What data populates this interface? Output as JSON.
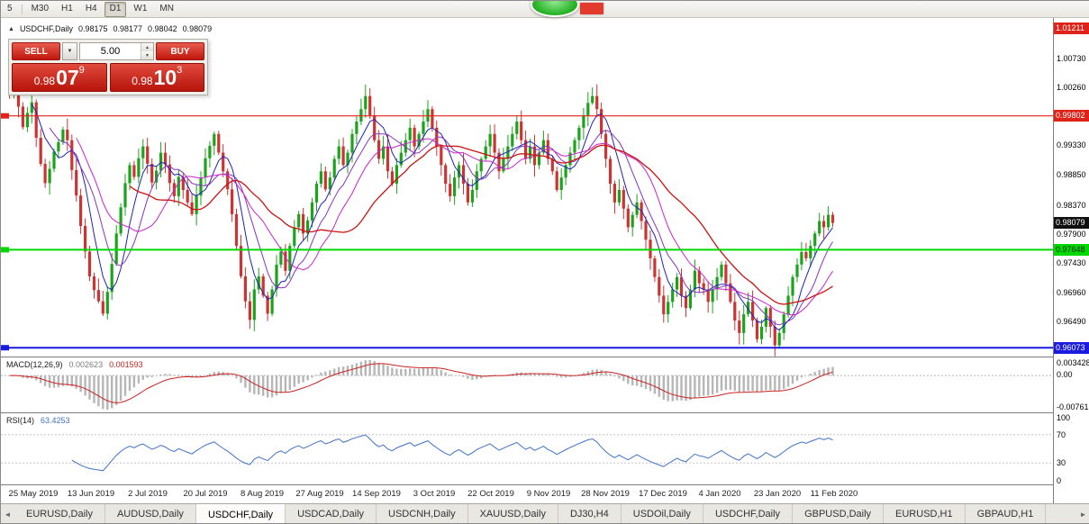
{
  "toolbar": {
    "timeframes": [
      "5",
      "M30",
      "H1",
      "H4",
      "D1",
      "W1",
      "MN"
    ],
    "active": "D1"
  },
  "chart_header": {
    "symbol_period": "USDCHF,Daily",
    "open": "0.98175",
    "high": "0.98177",
    "low": "0.98042",
    "close": "0.98079"
  },
  "trade_panel": {
    "sell_label": "SELL",
    "buy_label": "BUY",
    "volume": "5.00",
    "bid": {
      "whole": "0.98",
      "pips": "07",
      "point": "9"
    },
    "ask": {
      "whole": "0.98",
      "pips": "10",
      "point": "3"
    }
  },
  "price_axis": {
    "labels": [
      "1.00730",
      "1.00260",
      "0.99330",
      "0.98850",
      "0.98370",
      "0.97900",
      "0.97430",
      "0.96960",
      "0.96490"
    ],
    "badges": [
      {
        "text": "1.01211",
        "bg": "#e02318",
        "fg": "#ffffff"
      },
      {
        "text": "0.99802",
        "bg": "#e02318",
        "fg": "#ffffff"
      },
      {
        "text": "0.98079",
        "bg": "#101010",
        "fg": "#ffffff"
      },
      {
        "text": "0.97648",
        "bg": "#00d800",
        "fg": "#002b00"
      },
      {
        "text": "0.96073",
        "bg": "#1a1ae0",
        "fg": "#ffffff"
      }
    ]
  },
  "hlines": [
    {
      "price": 0.99802,
      "color": "#e02318",
      "width": 1.2
    },
    {
      "price": 0.97648,
      "color": "#00d800",
      "width": 2
    },
    {
      "price": 0.96073,
      "color": "#1a1ae0",
      "width": 2
    }
  ],
  "macd": {
    "label": "MACD(12,26,9)",
    "value": "0.002623",
    "signal": "0.001593",
    "axis_top": "0.003428",
    "axis_zero": "0.00",
    "axis_bottom": "-0.007615"
  },
  "rsi": {
    "label": "RSI(14)",
    "value": "63.4253",
    "axis": [
      100,
      70,
      30,
      0
    ],
    "levels": [
      70,
      30
    ]
  },
  "tabs": {
    "items": [
      "EURUSD,Daily",
      "AUDUSD,Daily",
      "USDCHF,Daily",
      "USDCAD,Daily",
      "USDCNH,Daily",
      "XAUUSD,Daily",
      "DJ30,H4",
      "USDOil,Daily",
      "USDCHF,Daily",
      "GBPUSD,Daily",
      "EURUSD,H1",
      "GBPAUD,H1"
    ],
    "active_index": 2
  },
  "colors": {
    "candle_up": "#1ca31c",
    "candle_down": "#cc3333",
    "ma": [
      "#2020bb",
      "#8833bb",
      "#cc22cc",
      "#cc1111"
    ],
    "macd_hist": "#b6b6b6",
    "macd_signal": "#cc2222",
    "rsi_line": "#3f72c8"
  },
  "chart_data": {
    "type": "candlestick",
    "symbol": "USDCHF",
    "timeframe": "Daily",
    "y_range": [
      0.9596,
      1.0139
    ],
    "x_labels": [
      "25 May 2019",
      "13 Jun 2019",
      "2 Jul 2019",
      "20 Jul 2019",
      "8 Aug 2019",
      "27 Aug 2019",
      "14 Sep 2019",
      "3 Oct 2019",
      "22 Oct 2019",
      "9 Nov 2019",
      "28 Nov 2019",
      "17 Dec 2019",
      "4 Jan 2020",
      "23 Jan 2020",
      "11 Feb 2020"
    ],
    "closes": [
      1.002,
      1.0028,
      0.9995,
      0.9962,
      0.9985,
      1.0002,
      0.9945,
      0.9903,
      0.9872,
      0.9895,
      0.9923,
      0.9938,
      0.9958,
      0.9941,
      0.9893,
      0.9852,
      0.9803,
      0.9762,
      0.9722,
      0.97,
      0.9682,
      0.9662,
      0.9697,
      0.9742,
      0.9791,
      0.9833,
      0.9872,
      0.9901,
      0.9882,
      0.9912,
      0.9931,
      0.9903,
      0.9873,
      0.9892,
      0.9921,
      0.9902,
      0.9872,
      0.9851,
      0.9882,
      0.9861,
      0.9841,
      0.9822,
      0.9852,
      0.9881,
      0.9912,
      0.9932,
      0.9951,
      0.9921,
      0.9891,
      0.9862,
      0.9822,
      0.9771,
      0.9722,
      0.9682,
      0.9652,
      0.9701,
      0.9722,
      0.9691,
      0.9662,
      0.9701,
      0.9741,
      0.9762,
      0.9731,
      0.9771,
      0.9801,
      0.9822,
      0.9791,
      0.9812,
      0.9841,
      0.9871,
      0.9891,
      0.9862,
      0.9881,
      0.9911,
      0.9931,
      0.9901,
      0.9921,
      0.9951,
      0.9971,
      0.9991,
      1.0012,
      0.9981,
      0.9941,
      0.9911,
      0.9931,
      0.9891,
      0.9871,
      0.9901,
      0.9921,
      0.9941,
      0.9961,
      0.9931,
      0.9951,
      0.9971,
      0.9991,
      0.9961,
      0.9931,
      0.9901,
      0.9871,
      0.9851,
      0.9881,
      0.9901,
      0.9871,
      0.9841,
      0.9861,
      0.9891,
      0.9911,
      0.9931,
      0.9951,
      0.9921,
      0.9891,
      0.9911,
      0.9931,
      0.9951,
      0.9971,
      0.9941,
      0.9911,
      0.9931,
      0.9901,
      0.9921,
      0.9941,
      0.9911,
      0.9891,
      0.9861,
      0.9881,
      0.9901,
      0.9921,
      0.9941,
      0.9961,
      0.9981,
      1.0001,
      1.0012,
      0.9991,
      0.9951,
      0.9911,
      0.9871,
      0.9841,
      0.9861,
      0.9831,
      0.9801,
      0.9821,
      0.9841,
      0.9811,
      0.9781,
      0.9751,
      0.9721,
      0.9691,
      0.9661,
      0.9681,
      0.9701,
      0.9721,
      0.9691,
      0.9671,
      0.9701,
      0.9731,
      0.9711,
      0.9701,
      0.9681,
      0.9701,
      0.9721,
      0.9741,
      0.9711,
      0.9681,
      0.9651,
      0.9631,
      0.9661,
      0.9681,
      0.9651,
      0.9621,
      0.9641,
      0.9671,
      0.9641,
      0.9611,
      0.9631,
      0.9661,
      0.9691,
      0.9721,
      0.9741,
      0.9761,
      0.9751,
      0.9771,
      0.9791,
      0.9811,
      0.9801,
      0.9821,
      0.9808
    ],
    "indicators": {
      "ma_periods": [
        6,
        10,
        16,
        28
      ],
      "macd": [
        12,
        26,
        9
      ],
      "rsi": 14
    }
  }
}
